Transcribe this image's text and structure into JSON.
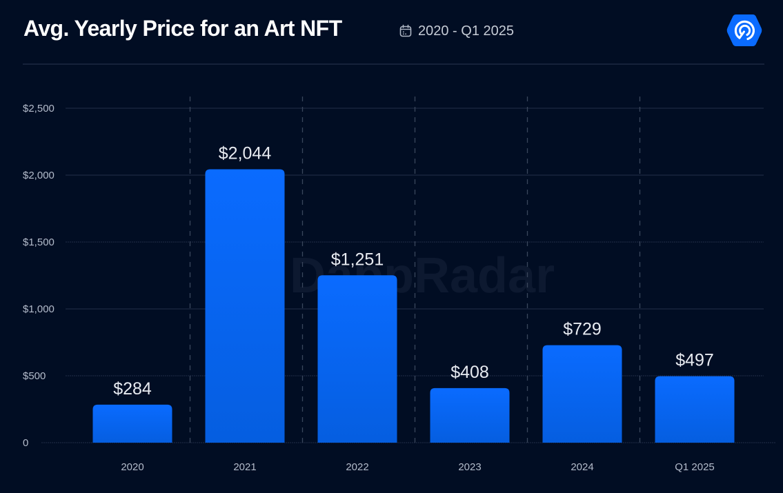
{
  "header": {
    "title": "Avg. Yearly Price for an Art NFT",
    "date_range": "2020 - Q1 2025",
    "date_icon": "calendar-icon",
    "logo_icon": "dappradar-logo-icon"
  },
  "watermark": "DappRadar",
  "colors": {
    "background": "#010d23",
    "bar_top": "#0a6bff",
    "bar_bottom": "#055ee0",
    "brand": "#0a6bff",
    "gridline": "#1e2a42",
    "separator": "#3a465c"
  },
  "chart_data": {
    "type": "bar",
    "title": "Avg. Yearly Price for an Art NFT",
    "subtitle": "2020 - Q1 2025",
    "xlabel": "",
    "ylabel": "",
    "categories": [
      "2020",
      "2021",
      "2022",
      "2023",
      "2024",
      "Q1 2025"
    ],
    "values": [
      284,
      2044,
      1251,
      408,
      729,
      497
    ],
    "data_labels": [
      "$284",
      "$2,044",
      "$1,251",
      "$408",
      "$729",
      "$497"
    ],
    "ylim": [
      0,
      2500
    ],
    "yticks": [
      0,
      500,
      1000,
      1500,
      2000,
      2500
    ],
    "ytick_labels": [
      "0",
      "$500",
      "$1,000",
      "$1,500",
      "$2,000",
      "$2,500"
    ],
    "grid": true,
    "legend": "none"
  }
}
